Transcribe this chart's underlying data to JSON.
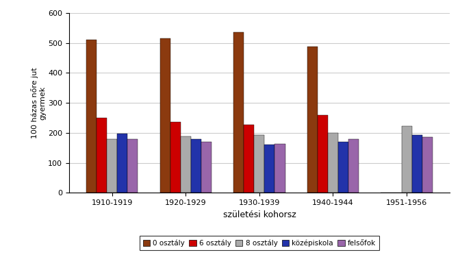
{
  "categories": [
    "1910-1919",
    "1920-1929",
    "1930-1939",
    "1940-1944",
    "1951-1956"
  ],
  "series": {
    "0 osztály": [
      510,
      515,
      535,
      488,
      0
    ],
    "6 osztály": [
      250,
      237,
      228,
      258,
      0
    ],
    "8 osztály": [
      180,
      188,
      192,
      200,
      222
    ],
    "középiskola": [
      197,
      178,
      160,
      170,
      193
    ],
    "felsőfok": [
      180,
      170,
      162,
      178,
      185
    ]
  },
  "colors": {
    "0 osztály": "#8B3A0F",
    "6 osztály": "#CC0000",
    "8 osztály": "#AAAAAA",
    "középiskola": "#2233AA",
    "felsőfok": "#9966AA"
  },
  "ylabel": "100 házas nőre jut\ngyermek",
  "xlabel": "születési kohorsz",
  "ylim": [
    0,
    600
  ],
  "yticks": [
    0,
    100,
    200,
    300,
    400,
    500,
    600
  ],
  "legend_labels": [
    "0 osztály",
    "6 osztály",
    "8 osztály",
    "középiskola",
    "felsőfok"
  ],
  "bar_width": 0.14,
  "figure_bg": "#FFFFFF",
  "plot_bg": "#FFFFFF",
  "grid_color": "#CCCCCC"
}
